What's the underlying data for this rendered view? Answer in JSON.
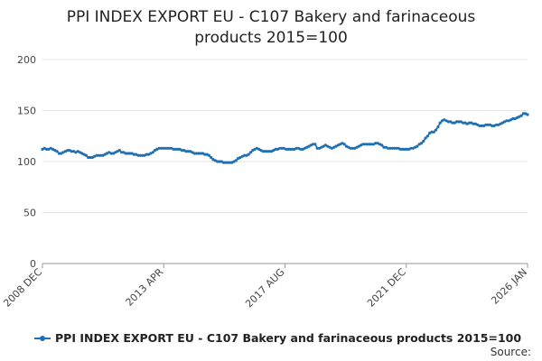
{
  "chart_data": {
    "type": "line",
    "title": "PPI INDEX EXPORT EU - C107 Bakery and farinaceous products 2015=100",
    "title_lines": [
      "PPI INDEX EXPORT EU - C107 Bakery and farinaceous",
      "products 2015=100"
    ],
    "xlabel": "",
    "ylabel": "",
    "ylim": [
      0,
      200
    ],
    "yticks": [
      0,
      50,
      100,
      150,
      200
    ],
    "x_start": "2008 DEC",
    "x_end": "2026 JAN",
    "xticks": [
      "2008 DEC",
      "2013 APR",
      "2017 AUG",
      "2021 DEC",
      "2026 JAN"
    ],
    "grid": "horizontal",
    "legend": "bottom",
    "color": "#1f6fb2",
    "series": [
      {
        "name": "PPI INDEX EXPORT EU - C107 Bakery and farinaceous products 2015=100",
        "values": [
          112,
          113,
          112,
          112,
          113,
          112,
          111,
          110,
          108,
          108,
          109,
          110,
          111,
          111,
          110,
          110,
          109,
          110,
          109,
          108,
          107,
          106,
          104,
          104,
          104,
          105,
          106,
          106,
          106,
          106,
          107,
          108,
          109,
          108,
          108,
          109,
          110,
          111,
          109,
          109,
          108,
          108,
          108,
          108,
          107,
          107,
          106,
          106,
          106,
          106,
          107,
          107,
          108,
          109,
          111,
          112,
          113,
          113,
          113,
          113,
          113,
          113,
          113,
          112,
          112,
          112,
          112,
          111,
          111,
          110,
          110,
          110,
          109,
          108,
          108,
          108,
          108,
          108,
          107,
          107,
          106,
          104,
          102,
          101,
          100,
          100,
          100,
          99,
          99,
          99,
          99,
          99,
          100,
          101,
          103,
          104,
          105,
          106,
          106,
          107,
          109,
          111,
          112,
          113,
          112,
          111,
          110,
          110,
          110,
          110,
          110,
          111,
          112,
          112,
          113,
          113,
          113,
          112,
          112,
          112,
          112,
          112,
          113,
          113,
          112,
          112,
          113,
          114,
          115,
          116,
          117,
          117,
          113,
          113,
          114,
          115,
          116,
          115,
          114,
          113,
          114,
          115,
          116,
          117,
          118,
          117,
          115,
          114,
          113,
          113,
          113,
          114,
          115,
          116,
          117,
          117,
          117,
          117,
          117,
          117,
          118,
          118,
          117,
          116,
          114,
          114,
          113,
          113,
          113,
          113,
          113,
          113,
          112,
          112,
          112,
          112,
          112,
          113,
          113,
          114,
          115,
          117,
          118,
          120,
          123,
          125,
          128,
          129,
          129,
          131,
          134,
          138,
          140,
          141,
          140,
          139,
          139,
          138,
          138,
          139,
          139,
          139,
          138,
          138,
          137,
          138,
          138,
          137,
          137,
          136,
          135,
          135,
          135,
          136,
          136,
          136,
          135,
          135,
          136,
          136,
          137,
          138,
          139,
          140,
          140,
          141,
          142,
          142,
          143,
          144,
          145,
          147,
          147,
          146
        ]
      }
    ]
  },
  "legend": {
    "label": "PPI INDEX EXPORT EU - C107 Bakery and farinaceous products 2015=100"
  },
  "source": {
    "label": "Source:"
  }
}
